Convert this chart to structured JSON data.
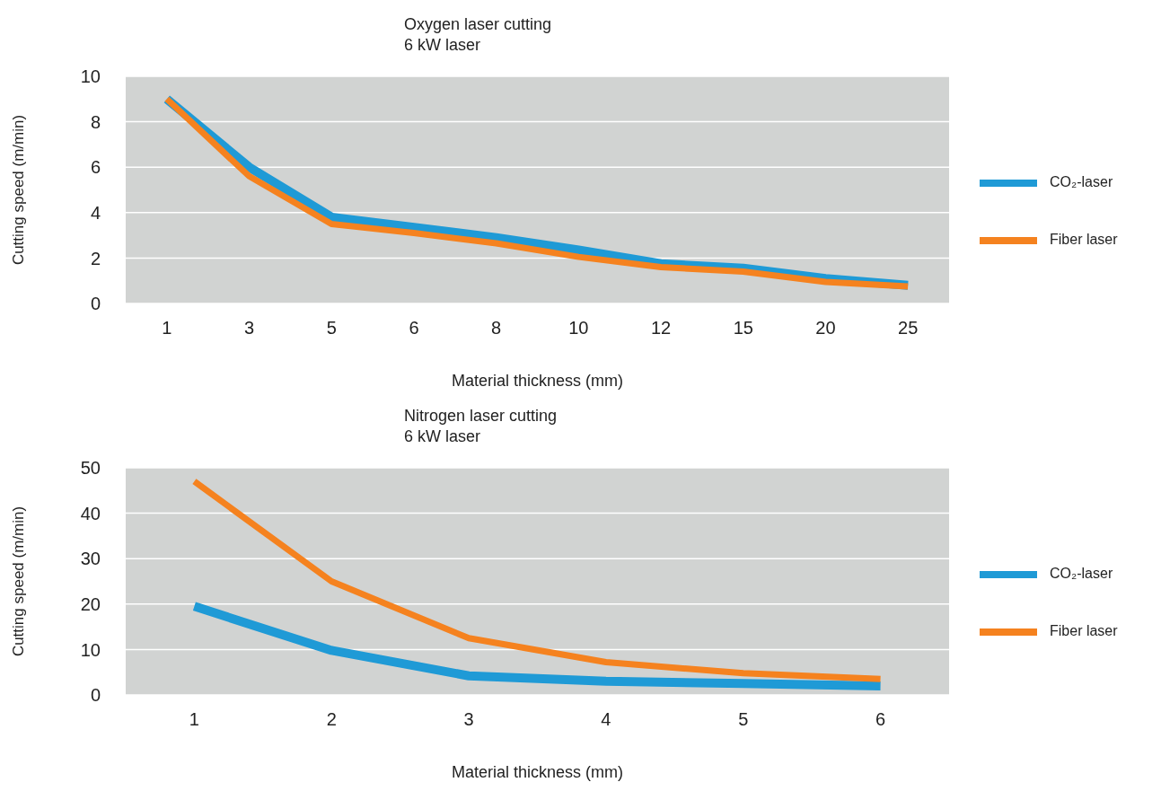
{
  "chart_data": [
    {
      "type": "line",
      "title": "Oxygen laser cutting",
      "subtitle": "6 kW laser",
      "xlabel": "Material thickness (mm)",
      "ylabel": "Cutting speed (m/min)",
      "categories": [
        "1",
        "3",
        "5",
        "6",
        "8",
        "10",
        "12",
        "15",
        "20",
        "25"
      ],
      "series": [
        {
          "name": "CO₂-laser",
          "color": "#1f9ad6",
          "values": [
            9,
            6,
            3.8,
            3.35,
            2.9,
            2.35,
            1.75,
            1.55,
            1.1,
            0.8
          ]
        },
        {
          "name": "Fiber laser",
          "color": "#f5821f",
          "values": [
            9,
            5.6,
            3.5,
            3.1,
            2.65,
            2.05,
            1.6,
            1.4,
            0.95,
            0.75
          ]
        }
      ],
      "ylim": [
        0,
        10
      ],
      "yticks": [
        0,
        2,
        4,
        6,
        8,
        10
      ],
      "grid": "y",
      "legend": "right",
      "marker": "none"
    },
    {
      "type": "line",
      "title": "Nitrogen laser cutting",
      "subtitle": "6 kW laser",
      "xlabel": "Material thickness (mm)",
      "ylabel": "Cutting speed (m/min)",
      "categories": [
        "1",
        "2",
        "3",
        "4",
        "5",
        "6"
      ],
      "series": [
        {
          "name": "CO₂-laser",
          "color": "#1f9ad6",
          "values": [
            19.5,
            9.8,
            4.2,
            3,
            2.5,
            2
          ]
        },
        {
          "name": "Fiber laser",
          "color": "#f5821f",
          "values": [
            47,
            25,
            12.5,
            7.2,
            4.8,
            3.5
          ]
        }
      ],
      "ylim": [
        0,
        50
      ],
      "yticks": [
        0,
        10,
        20,
        30,
        40,
        50
      ],
      "grid": "y",
      "legend": "right",
      "marker": "none"
    }
  ]
}
